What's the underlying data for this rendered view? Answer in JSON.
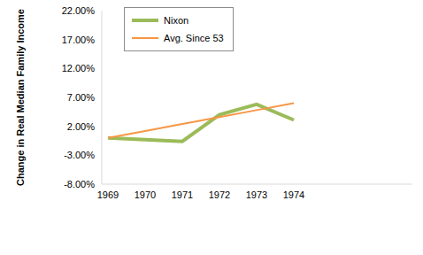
{
  "chart_data": {
    "type": "line",
    "y_label": "Change in Real Median Family Income",
    "categories": [
      "1969",
      "1970",
      "1971",
      "1972",
      "1973",
      "1974",
      null,
      null,
      null
    ],
    "series": [
      {
        "name": "Nixon",
        "color": "#9bbb59",
        "values": [
          0,
          -0.3,
          -0.6,
          4.0,
          5.8,
          3.1,
          null,
          null,
          null
        ]
      },
      {
        "name": "Avg. Since 53",
        "color": "#f79646",
        "values": [
          0,
          1.2,
          2.4,
          3.6,
          4.8,
          6.0,
          null,
          null,
          null
        ]
      }
    ],
    "ylim": [
      -8,
      22
    ],
    "yticks": [
      {
        "value": -8,
        "label": "-8.00%"
      },
      {
        "value": -3,
        "label": "-3.00%"
      },
      {
        "value": 2,
        "label": "2.00%"
      },
      {
        "value": 7,
        "label": "7.00%"
      },
      {
        "value": 12,
        "label": "12.00%"
      },
      {
        "value": 17,
        "label": "17.00%"
      },
      {
        "value": 22,
        "label": "22.00%"
      }
    ],
    "grid": false,
    "legend": "upper left"
  }
}
